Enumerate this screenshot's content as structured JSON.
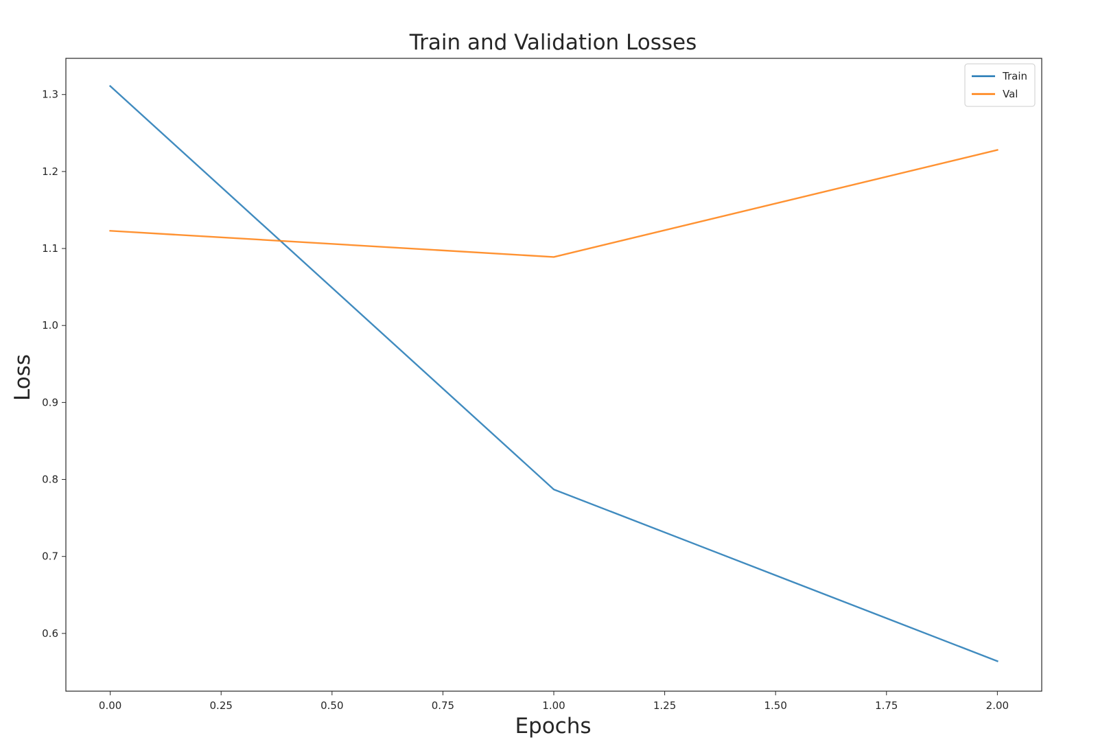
{
  "chart_data": {
    "type": "line",
    "title": "Train and Validation Losses",
    "xlabel": "Epochs",
    "ylabel": "Loss",
    "x": [
      0,
      1,
      2
    ],
    "series": [
      {
        "name": "Train",
        "values": [
          1.311,
          0.787,
          0.564
        ],
        "color": "#1f77b4"
      },
      {
        "name": "Val",
        "values": [
          1.123,
          1.089,
          1.228
        ],
        "color": "#ff7f0e"
      }
    ],
    "xlim": [
      -0.1,
      2.1
    ],
    "ylim": [
      0.525,
      1.347
    ],
    "xticks": [
      0,
      0.25,
      0.5,
      0.75,
      1.0,
      1.25,
      1.5,
      1.75,
      2.0
    ],
    "xtick_labels": [
      "0.00",
      "0.25",
      "0.50",
      "0.75",
      "1.00",
      "1.25",
      "1.50",
      "1.75",
      "2.00"
    ],
    "yticks": [
      0.6,
      0.7,
      0.8,
      0.9,
      1.0,
      1.1,
      1.2,
      1.3
    ],
    "ytick_labels": [
      "0.6",
      "0.7",
      "0.8",
      "0.9",
      "1.0",
      "1.1",
      "1.2",
      "1.3"
    ],
    "grid": false,
    "legend_position": "top-right"
  }
}
